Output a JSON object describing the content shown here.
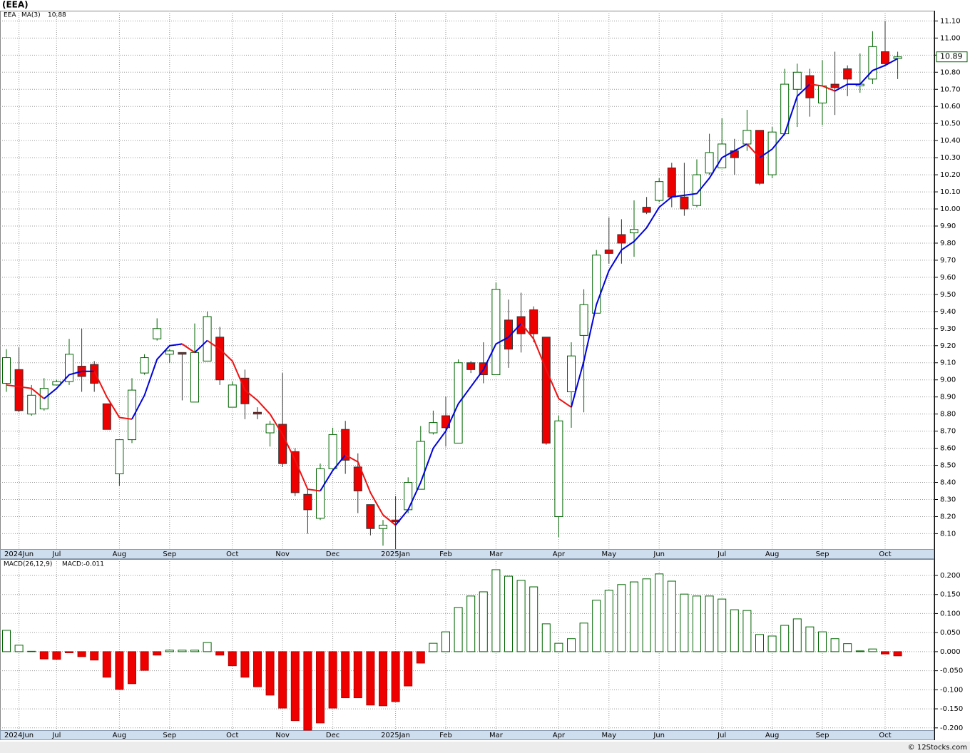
{
  "chart_data": [
    {
      "type": "candlestick",
      "title": "(EEA)",
      "series_name": "EEA",
      "categories": [
        null,
        "2024Jun",
        null,
        null,
        "Jul",
        null,
        null,
        null,
        null,
        "Aug",
        null,
        null,
        null,
        "Sep",
        null,
        null,
        null,
        null,
        "Oct",
        null,
        null,
        null,
        "Nov",
        null,
        null,
        null,
        "Dec",
        null,
        null,
        null,
        null,
        "2025Jan",
        null,
        null,
        null,
        "Feb",
        null,
        null,
        null,
        "Mar",
        null,
        null,
        null,
        null,
        "Apr",
        null,
        null,
        null,
        "May",
        null,
        null,
        null,
        "Jun",
        null,
        null,
        null,
        null,
        "Jul",
        null,
        null,
        null,
        "Aug",
        null,
        null,
        null,
        "Sep",
        null,
        null,
        null,
        null,
        "Oct",
        null
      ],
      "open": [
        8.98,
        9.06,
        8.8,
        8.83,
        8.97,
        8.99,
        9.08,
        9.09,
        8.86,
        8.45,
        8.65,
        9.04,
        9.24,
        9.15,
        9.16,
        8.87,
        9.11,
        9.25,
        8.84,
        9.01,
        8.81,
        8.69,
        8.74,
        8.58,
        8.33,
        8.19,
        8.48,
        8.71,
        8.49,
        8.27,
        8.13,
        8.18,
        8.24,
        8.36,
        8.69,
        8.79,
        8.63,
        9.1,
        9.1,
        9.03,
        9.35,
        9.37,
        9.41,
        9.25,
        8.2,
        8.93,
        9.26,
        9.39,
        9.76,
        9.85,
        9.86,
        10.01,
        10.05,
        10.24,
        10.07,
        10.02,
        10.21,
        10.24,
        10.34,
        10.38,
        10.46,
        10.2,
        10.44,
        10.7,
        10.78,
        10.62,
        10.73,
        10.82,
        10.72,
        10.76,
        10.92,
        10.88
      ],
      "high": [
        9.18,
        9.19,
        8.97,
        9.01,
        9.0,
        9.24,
        9.3,
        9.11,
        8.86,
        8.65,
        9.01,
        9.15,
        9.36,
        9.18,
        9.16,
        9.33,
        9.4,
        9.31,
        8.99,
        9.06,
        8.84,
        8.76,
        9.04,
        8.6,
        8.36,
        8.51,
        8.72,
        8.76,
        8.57,
        8.27,
        8.18,
        8.32,
        8.43,
        8.73,
        8.82,
        8.9,
        9.12,
        9.11,
        9.22,
        9.57,
        9.47,
        9.51,
        9.43,
        9.25,
        8.79,
        9.22,
        9.53,
        9.76,
        9.95,
        9.94,
        10.05,
        10.07,
        10.18,
        10.27,
        10.27,
        10.29,
        10.44,
        10.53,
        10.41,
        10.58,
        10.46,
        10.48,
        10.82,
        10.85,
        10.82,
        10.87,
        10.92,
        10.84,
        10.91,
        11.04,
        11.1,
        10.92
      ],
      "low": [
        8.93,
        8.81,
        8.79,
        8.82,
        8.97,
        8.97,
        8.93,
        8.93,
        8.71,
        8.38,
        8.63,
        9.03,
        9.23,
        9.1,
        8.88,
        8.87,
        9.11,
        8.97,
        8.84,
        8.77,
        8.77,
        8.61,
        8.49,
        8.32,
        8.1,
        8.18,
        8.47,
        8.45,
        8.22,
        8.09,
        8.03,
        8.01,
        8.22,
        8.36,
        8.68,
        8.61,
        8.63,
        9.04,
        8.98,
        9.03,
        9.07,
        9.16,
        9.22,
        8.62,
        8.08,
        8.72,
        8.81,
        9.39,
        9.68,
        9.68,
        9.72,
        9.97,
        10.04,
        10.01,
        9.96,
        10.01,
        10.2,
        10.24,
        10.2,
        10.34,
        10.14,
        10.18,
        10.43,
        10.48,
        10.54,
        10.49,
        10.55,
        10.66,
        10.68,
        10.73,
        10.84,
        10.76
      ],
      "close": [
        9.13,
        8.82,
        8.91,
        8.95,
        8.99,
        9.15,
        9.02,
        8.98,
        8.71,
        8.65,
        8.94,
        9.13,
        9.3,
        9.17,
        9.15,
        9.16,
        9.37,
        9.0,
        8.97,
        8.86,
        8.8,
        8.74,
        8.51,
        8.34,
        8.24,
        8.48,
        8.68,
        8.53,
        8.35,
        8.13,
        8.15,
        8.17,
        8.4,
        8.64,
        8.75,
        8.72,
        9.1,
        9.06,
        9.03,
        9.53,
        9.18,
        9.27,
        9.27,
        8.63,
        8.76,
        9.14,
        9.44,
        9.73,
        9.74,
        9.8,
        9.88,
        9.98,
        10.16,
        10.07,
        10.0,
        10.2,
        10.33,
        10.38,
        10.3,
        10.46,
        10.15,
        10.45,
        10.73,
        10.8,
        10.65,
        10.72,
        10.71,
        10.76,
        10.73,
        10.95,
        10.85,
        10.89
      ],
      "up_color": "#006400",
      "down_color": "#ee0000",
      "ma": {
        "name": "MA(3)",
        "up_color": "#0000dd",
        "down_color": "#ee1111",
        "values": [
          8.97,
          8.96,
          8.95,
          8.89,
          8.95,
          9.03,
          9.05,
          9.05,
          8.9,
          8.78,
          8.77,
          8.91,
          9.12,
          9.2,
          9.21,
          9.16,
          9.23,
          9.18,
          9.11,
          8.94,
          8.88,
          8.8,
          8.68,
          8.53,
          8.36,
          8.35,
          8.47,
          8.56,
          8.52,
          8.34,
          8.21,
          8.15,
          8.24,
          8.4,
          8.6,
          8.7,
          8.86,
          8.96,
          9.06,
          9.21,
          9.25,
          9.33,
          9.24,
          9.06,
          8.89,
          8.84,
          9.11,
          9.44,
          9.64,
          9.76,
          9.81,
          9.89,
          10.01,
          10.07,
          10.08,
          10.09,
          10.18,
          10.3,
          10.34,
          10.38,
          10.3,
          10.35,
          10.44,
          10.66,
          10.73,
          10.72,
          10.69,
          10.73,
          10.73,
          10.81,
          10.84,
          10.88
        ]
      },
      "ylim": [
        8.01,
        11.16
      ],
      "yticks": [
        {
          "value": 8.1,
          "label": "8.10"
        },
        {
          "value": 8.2,
          "label": "8.20"
        },
        {
          "value": 8.3,
          "label": "8.30"
        },
        {
          "value": 8.4,
          "label": "8.40"
        },
        {
          "value": 8.5,
          "label": "8.50"
        },
        {
          "value": 8.6,
          "label": "8.60"
        },
        {
          "value": 8.7,
          "label": "8.70"
        },
        {
          "value": 8.8,
          "label": "8.80"
        },
        {
          "value": 8.9,
          "label": "8.90"
        },
        {
          "value": 9.0,
          "label": "9.00"
        },
        {
          "value": 9.1,
          "label": "9.10"
        },
        {
          "value": 9.2,
          "label": "9.20"
        },
        {
          "value": 9.3,
          "label": "9.30"
        },
        {
          "value": 9.4,
          "label": "9.40"
        },
        {
          "value": 9.5,
          "label": "9.50"
        },
        {
          "value": 9.6,
          "label": "9.60"
        },
        {
          "value": 9.7,
          "label": "9.70"
        },
        {
          "value": 9.8,
          "label": "9.80"
        },
        {
          "value": 9.9,
          "label": "9.90"
        },
        {
          "value": 10.0,
          "label": "10.00"
        },
        {
          "value": 10.1,
          "label": "10.10"
        },
        {
          "value": 10.2,
          "label": "10.20"
        },
        {
          "value": 10.3,
          "label": "10.30"
        },
        {
          "value": 10.4,
          "label": "10.40"
        },
        {
          "value": 10.5,
          "label": "10.50"
        },
        {
          "value": 10.6,
          "label": "10.60"
        },
        {
          "value": 10.7,
          "label": "10.70"
        },
        {
          "value": 10.8,
          "label": "10.80"
        },
        {
          "value": 10.9,
          "label": "10.90"
        },
        {
          "value": 11.0,
          "label": "11.00"
        },
        {
          "value": 11.1,
          "label": "11.10"
        }
      ],
      "grid": true
    },
    {
      "type": "bar",
      "title": "MACD(26,12,9)",
      "legend_name": "MACD:",
      "categories": [
        null,
        "2024Jun",
        null,
        null,
        "Jul",
        null,
        null,
        null,
        null,
        "Aug",
        null,
        null,
        null,
        "Sep",
        null,
        null,
        null,
        null,
        "Oct",
        null,
        null,
        null,
        "Nov",
        null,
        null,
        null,
        "Dec",
        null,
        null,
        null,
        null,
        "2025Jan",
        null,
        null,
        null,
        "Feb",
        null,
        null,
        null,
        "Mar",
        null,
        null,
        null,
        null,
        "Apr",
        null,
        null,
        null,
        "May",
        null,
        null,
        null,
        "Jun",
        null,
        null,
        null,
        null,
        "Jul",
        null,
        null,
        null,
        "Aug",
        null,
        null,
        null,
        "Sep",
        null,
        null,
        null,
        null,
        "Oct",
        null
      ],
      "values": [
        0.056,
        0.017,
        0.001,
        -0.019,
        -0.02,
        -0.003,
        -0.013,
        -0.022,
        -0.067,
        -0.099,
        -0.084,
        -0.049,
        -0.009,
        0.004,
        0.004,
        0.004,
        0.024,
        -0.009,
        -0.037,
        -0.067,
        -0.092,
        -0.114,
        -0.148,
        -0.181,
        -0.206,
        -0.187,
        -0.148,
        -0.121,
        -0.121,
        -0.14,
        -0.142,
        -0.131,
        -0.09,
        -0.03,
        0.022,
        0.052,
        0.116,
        0.146,
        0.157,
        0.215,
        0.198,
        0.187,
        0.17,
        0.073,
        0.022,
        0.034,
        0.075,
        0.135,
        0.161,
        0.176,
        0.183,
        0.191,
        0.204,
        0.185,
        0.151,
        0.146,
        0.146,
        0.138,
        0.11,
        0.108,
        0.045,
        0.041,
        0.069,
        0.086,
        0.065,
        0.052,
        0.034,
        0.021,
        0.002,
        0.007,
        -0.006,
        -0.011
      ],
      "up_color": "#006400",
      "down_color": "#ee0000",
      "ylim": [
        -0.206,
        0.243
      ],
      "yticks": [
        {
          "value": -0.2,
          "label": "-0.200"
        },
        {
          "value": -0.15,
          "label": "-0.150"
        },
        {
          "value": -0.1,
          "label": "-0.100"
        },
        {
          "value": -0.05,
          "label": "-0.050"
        },
        {
          "value": 0,
          "label": "0.000"
        },
        {
          "value": 0.05,
          "label": "0.050"
        },
        {
          "value": 0.1,
          "label": "0.100"
        },
        {
          "value": 0.15,
          "label": "0.150"
        },
        {
          "value": 0.2,
          "label": "0.200"
        }
      ],
      "grid": true
    }
  ],
  "footer": "© 12Stocks.com"
}
